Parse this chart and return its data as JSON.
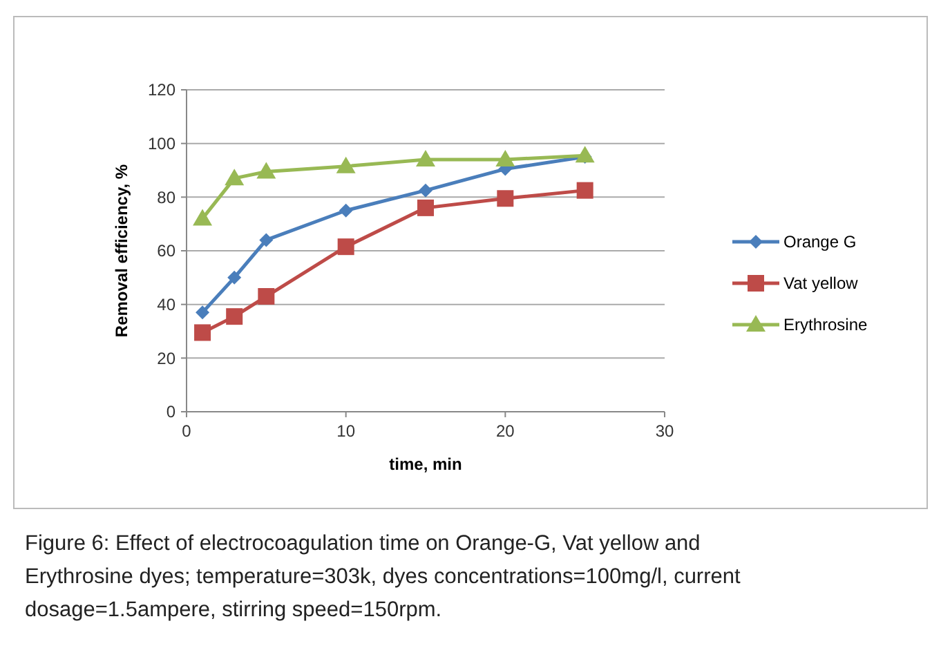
{
  "chart_data": {
    "type": "line",
    "xlabel": "time, min",
    "ylabel": "Removal efficiency, %",
    "x": [
      1,
      3,
      5,
      10,
      15,
      20,
      25
    ],
    "series": [
      {
        "name": "Orange G",
        "color": "#4a7ebb",
        "marker": "diamond",
        "values": [
          37,
          50,
          64,
          75,
          82.5,
          90.5,
          95
        ]
      },
      {
        "name": "Vat yellow",
        "color": "#be4b48",
        "marker": "square",
        "values": [
          29.5,
          35.5,
          43,
          61.5,
          76,
          79.5,
          82.5
        ]
      },
      {
        "name": "Erythrosine",
        "color": "#98b954",
        "marker": "triangle",
        "values": [
          72,
          87,
          89.5,
          91.5,
          94,
          94,
          95.5
        ]
      }
    ],
    "xlim": [
      0,
      30
    ],
    "xticks": [
      0,
      10,
      20,
      30
    ],
    "ylim": [
      0,
      120
    ],
    "yticks": [
      0,
      20,
      40,
      60,
      80,
      100,
      120
    ],
    "grid": "y",
    "legend": "right",
    "annotations": [
      "Figure 6: Effect of electrocoagulation time on Orange-G, Vat yellow and Erythrosine dyes; temperature=303k, dyes concentrations=100mg/l, current dosage=1.5ampere, stirring speed=150rpm."
    ]
  }
}
